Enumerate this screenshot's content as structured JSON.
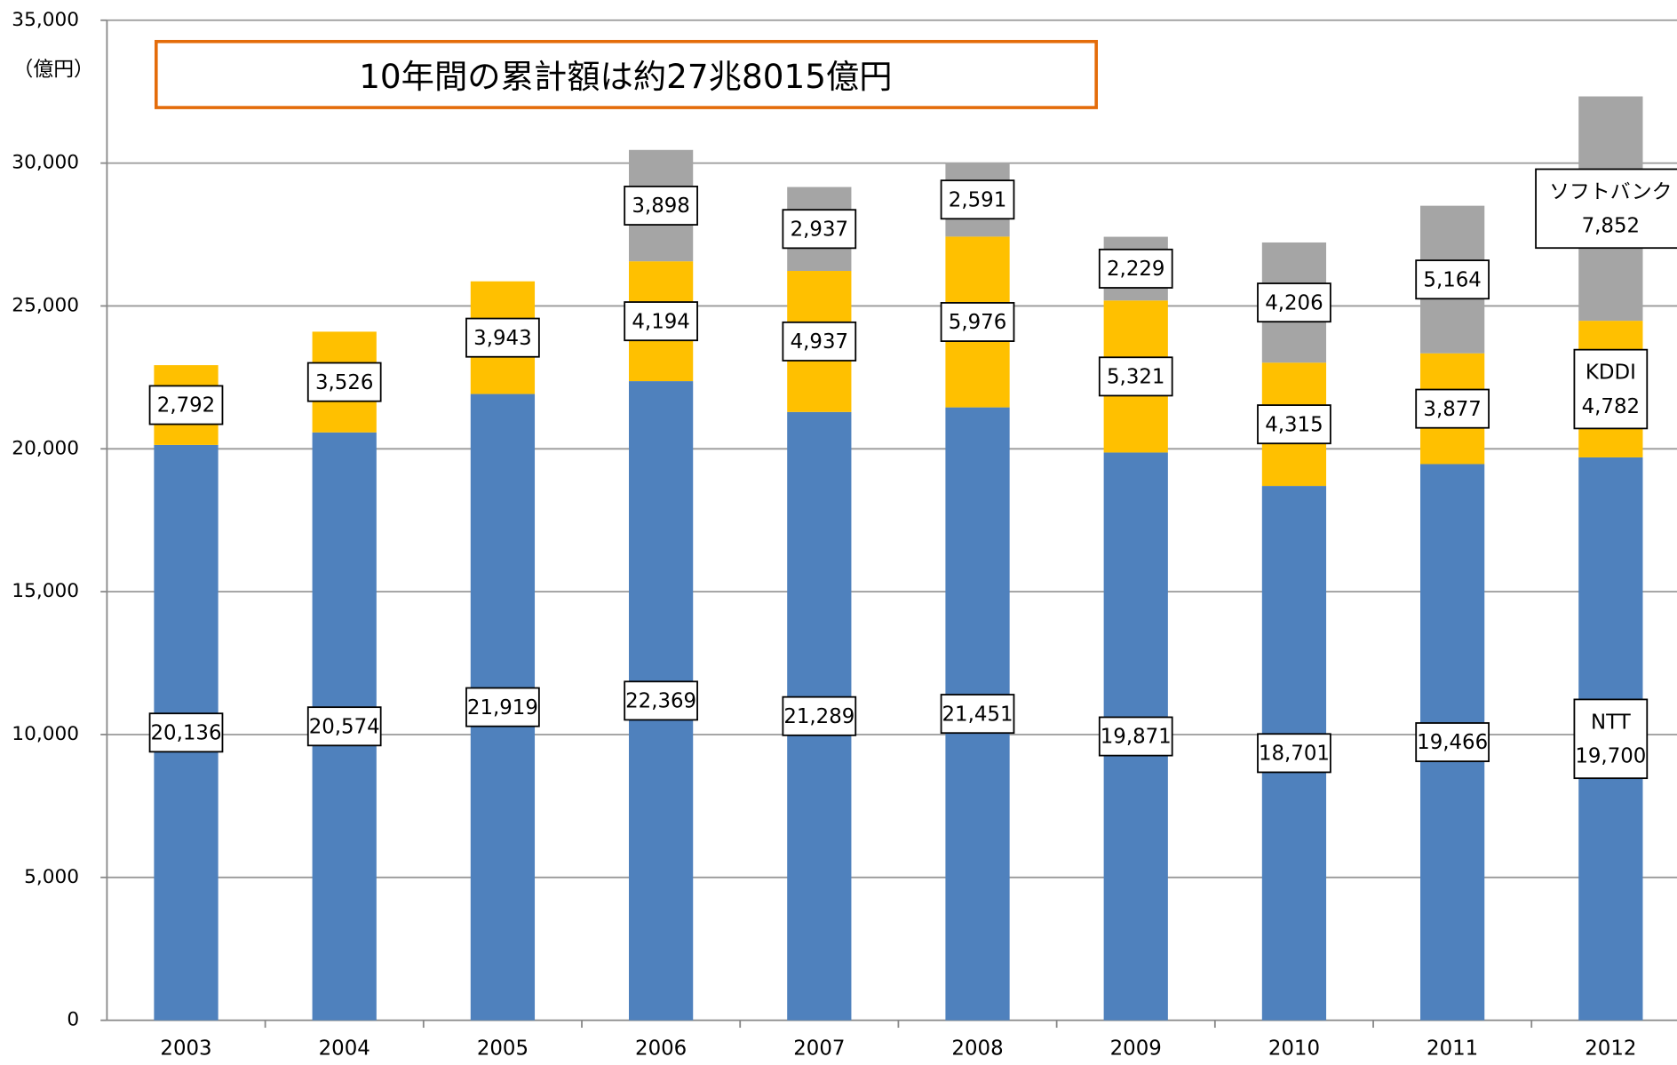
{
  "chart_data": {
    "type": "stacked_bar",
    "annotation": "10年間の累計額は約27兆8015億円",
    "y_axis_label": "（億円）",
    "categories": [
      "2003",
      "2004",
      "2005",
      "2006",
      "2007",
      "2008",
      "2009",
      "2010",
      "2011",
      "2012"
    ],
    "series": [
      {
        "name": "NTT",
        "color": "#4f81bd",
        "values": [
          20136,
          20574,
          21919,
          22369,
          21289,
          21451,
          19871,
          18701,
          19466,
          19700
        ],
        "value_labels": [
          "20,136",
          "20,574",
          "21,919",
          "22,369",
          "21,289",
          "21,451",
          "19,871",
          "18,701",
          "19,466",
          "19,700"
        ]
      },
      {
        "name": "KDDI",
        "color": "#ffc000",
        "values": [
          2792,
          3526,
          3943,
          4194,
          4937,
          5976,
          5321,
          4315,
          3877,
          4782
        ],
        "value_labels": [
          "2,792",
          "3,526",
          "3,943",
          "4,194",
          "4,937",
          "5,976",
          "5,321",
          "4,315",
          "3,877",
          "4,782"
        ]
      },
      {
        "name": "ソフトバンク",
        "color": "#a5a5a5",
        "values": [
          null,
          null,
          null,
          3898,
          2937,
          2591,
          2229,
          4206,
          5164,
          7852
        ],
        "value_labels": [
          null,
          null,
          null,
          "3,898",
          "2,937",
          "2,591",
          "2,229",
          "4,206",
          "5,164",
          "7,852"
        ]
      }
    ],
    "ylim": [
      0,
      35000
    ],
    "yticks": [
      0,
      {
        "value": 5000,
        "label": "5,000"
      },
      {
        "value": 10000,
        "label": "10,000"
      },
      {
        "value": 15000,
        "label": "15,000"
      },
      {
        "value": 20000,
        "label": "20,000"
      },
      {
        "value": 25000,
        "label": "25,000"
      },
      {
        "value": 30000,
        "label": "30,000"
      },
      {
        "value": 35000,
        "label": "35,000"
      }
    ],
    "grid": true
  }
}
